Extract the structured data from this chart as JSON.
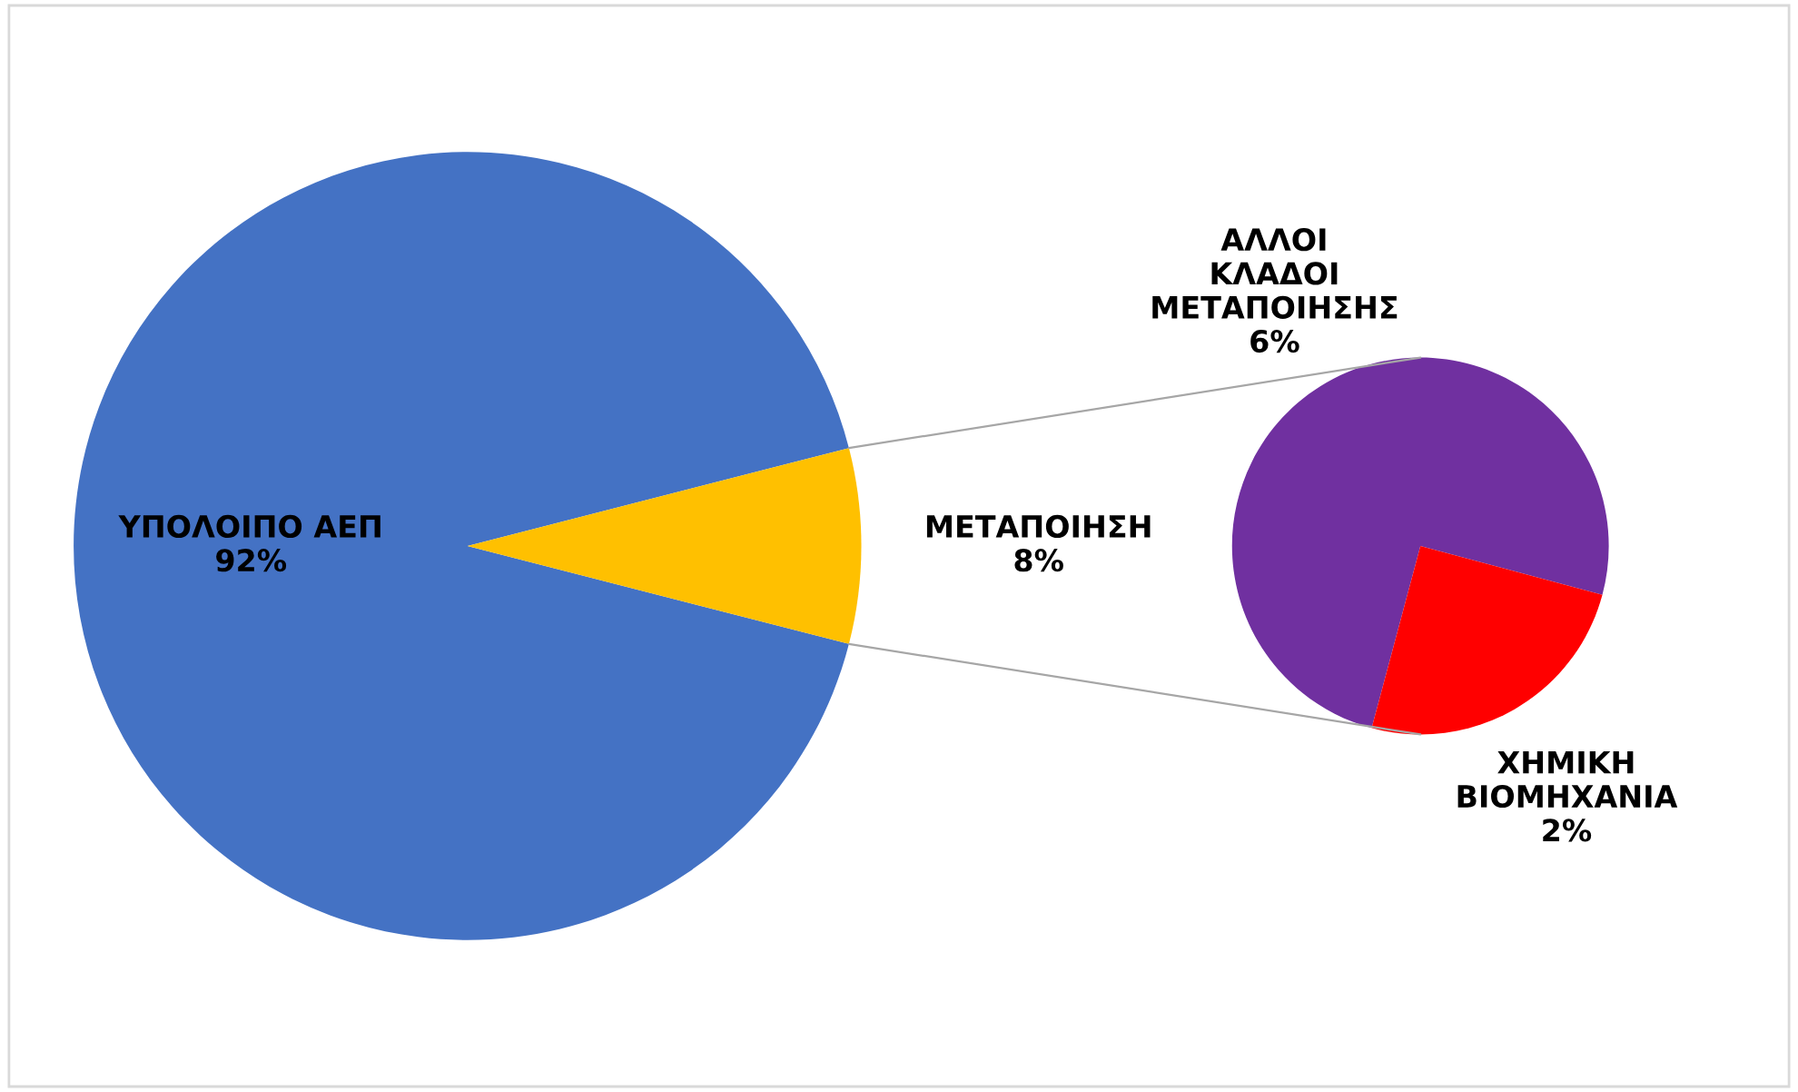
{
  "chart_data": [
    {
      "type": "pie",
      "categories": [
        "ΥΠΟΛΟΙΠΟ ΑΕΠ",
        "ΜΕΤΑΠΟΙΗΣΗ"
      ],
      "values": [
        92,
        8
      ],
      "colors": [
        "#4472c4",
        "#ffc000"
      ],
      "value_labels": [
        "92%",
        "8%"
      ]
    },
    {
      "type": "pie",
      "categories": [
        "ΑΛΛΟΙ ΚΛΑΔΟΙ ΜΕΤΑΠΟΙΗΣΗΣ",
        "ΧΗΜΙΚΗ ΒΙΟΜΗΧΑΝΙΑ"
      ],
      "values": [
        6,
        2
      ],
      "colors": [
        "#7030a0",
        "#ff0000"
      ],
      "value_labels": [
        "6%",
        "2%"
      ]
    }
  ]
}
